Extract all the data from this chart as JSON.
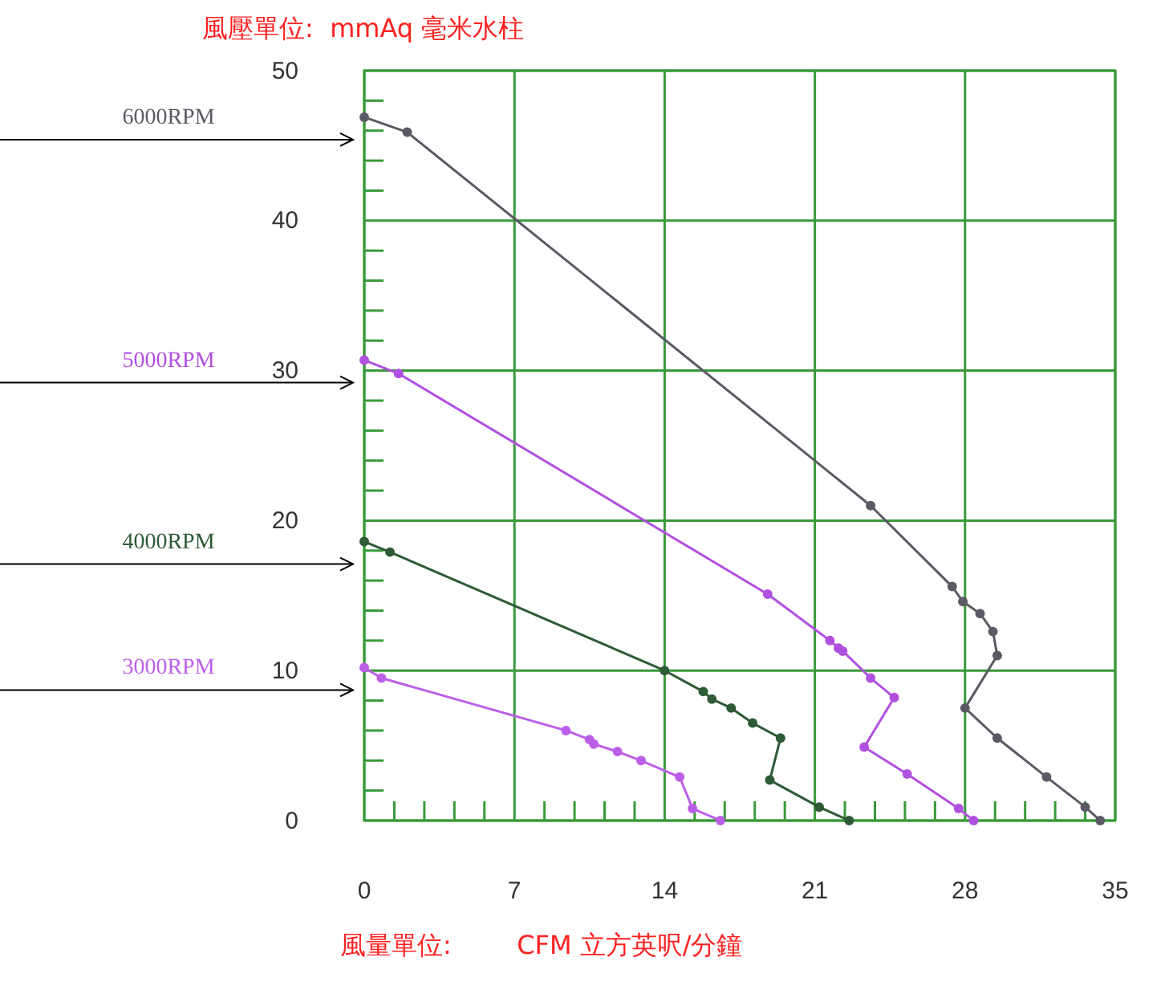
{
  "chart_data": {
    "type": "line",
    "xlabel": "風量單位:        CFM 立方英呎/分鐘",
    "ylabel": "風壓單位:  mmAq 毫米水柱",
    "xlim": [
      0,
      35
    ],
    "ylim": [
      0,
      50
    ],
    "xticks": [
      0,
      {
        "value": 1.4,
        "label": null
      },
      {
        "value": 2.8,
        "label": null
      },
      {
        "value": 4.2,
        "label": null
      },
      {
        "value": 5.6,
        "label": null
      },
      7,
      {
        "value": 8.4,
        "label": null
      },
      {
        "value": 9.8,
        "label": null
      },
      {
        "value": 11.2,
        "label": null
      },
      {
        "value": 12.6,
        "label": null
      },
      14,
      {
        "value": 15.4,
        "label": null
      },
      {
        "value": 16.8,
        "label": null
      },
      {
        "value": 18.2,
        "label": null
      },
      {
        "value": 19.6,
        "label": null
      },
      21,
      {
        "value": 22.4,
        "label": null
      },
      {
        "value": 23.8,
        "label": null
      },
      {
        "value": 25.2,
        "label": null
      },
      {
        "value": 26.6,
        "label": null
      },
      28,
      {
        "value": 29.4,
        "label": null
      },
      {
        "value": 30.8,
        "label": null
      },
      {
        "value": 32.2,
        "label": null
      },
      {
        "value": 33.6,
        "label": null
      },
      35
    ],
    "yticks": [
      0,
      {
        "value": 2,
        "label": null
      },
      {
        "value": 4,
        "label": null
      },
      {
        "value": 6,
        "label": null
      },
      {
        "value": 8,
        "label": null
      },
      10,
      {
        "value": 12,
        "label": null
      },
      {
        "value": 14,
        "label": null
      },
      {
        "value": 16,
        "label": null
      },
      {
        "value": 18,
        "label": null
      },
      20,
      {
        "value": 22,
        "label": null
      },
      {
        "value": 24,
        "label": null
      },
      {
        "value": 26,
        "label": null
      },
      {
        "value": 28,
        "label": null
      },
      30,
      {
        "value": 32,
        "label": null
      },
      {
        "value": 34,
        "label": null
      },
      {
        "value": 36,
        "label": null
      },
      {
        "value": 38,
        "label": null
      },
      40,
      {
        "value": 42,
        "label": null
      },
      {
        "value": 44,
        "label": null
      },
      {
        "value": 46,
        "label": null
      },
      {
        "value": 48,
        "label": null
      },
      50
    ],
    "grid": true,
    "legend": false,
    "marker": "circle",
    "line_style": "solid",
    "series": [
      {
        "name": "6000RPM",
        "color": "#5a5a64",
        "x": [
          0,
          2.0,
          23.6,
          27.4,
          27.9,
          28.7,
          29.3,
          29.5,
          28.0,
          29.5,
          31.8,
          33.6,
          34.3
        ],
        "values": [
          46.9,
          45.9,
          21.0,
          15.6,
          14.6,
          13.8,
          12.6,
          11.0,
          7.5,
          5.5,
          2.9,
          0.9,
          0
        ]
      },
      {
        "name": "5000RPM",
        "color": "#b050e0",
        "x": [
          0,
          1.6,
          18.8,
          21.7,
          22.1,
          22.3,
          23.6,
          24.7,
          23.3,
          25.3,
          27.7,
          28.4
        ],
        "values": [
          30.7,
          29.8,
          15.1,
          12.0,
          11.5,
          11.3,
          9.5,
          8.2,
          4.9,
          3.1,
          0.8,
          0
        ]
      },
      {
        "name": "4000RPM",
        "color": "#2e5a36",
        "x": [
          0,
          1.2,
          14.0,
          15.8,
          16.2,
          17.1,
          18.1,
          19.4,
          18.9,
          21.2,
          22.6
        ],
        "values": [
          18.6,
          17.9,
          10.0,
          8.6,
          8.1,
          7.5,
          6.5,
          5.5,
          2.7,
          0.9,
          0
        ]
      },
      {
        "name": "3000RPM",
        "color": "#bc5fe8",
        "x": [
          0,
          0.8,
          9.4,
          10.5,
          10.7,
          11.8,
          12.9,
          14.7,
          15.3,
          16.6
        ],
        "values": [
          10.2,
          9.5,
          6.0,
          5.4,
          5.1,
          4.6,
          4.0,
          2.9,
          0.8,
          0
        ]
      }
    ]
  }
}
